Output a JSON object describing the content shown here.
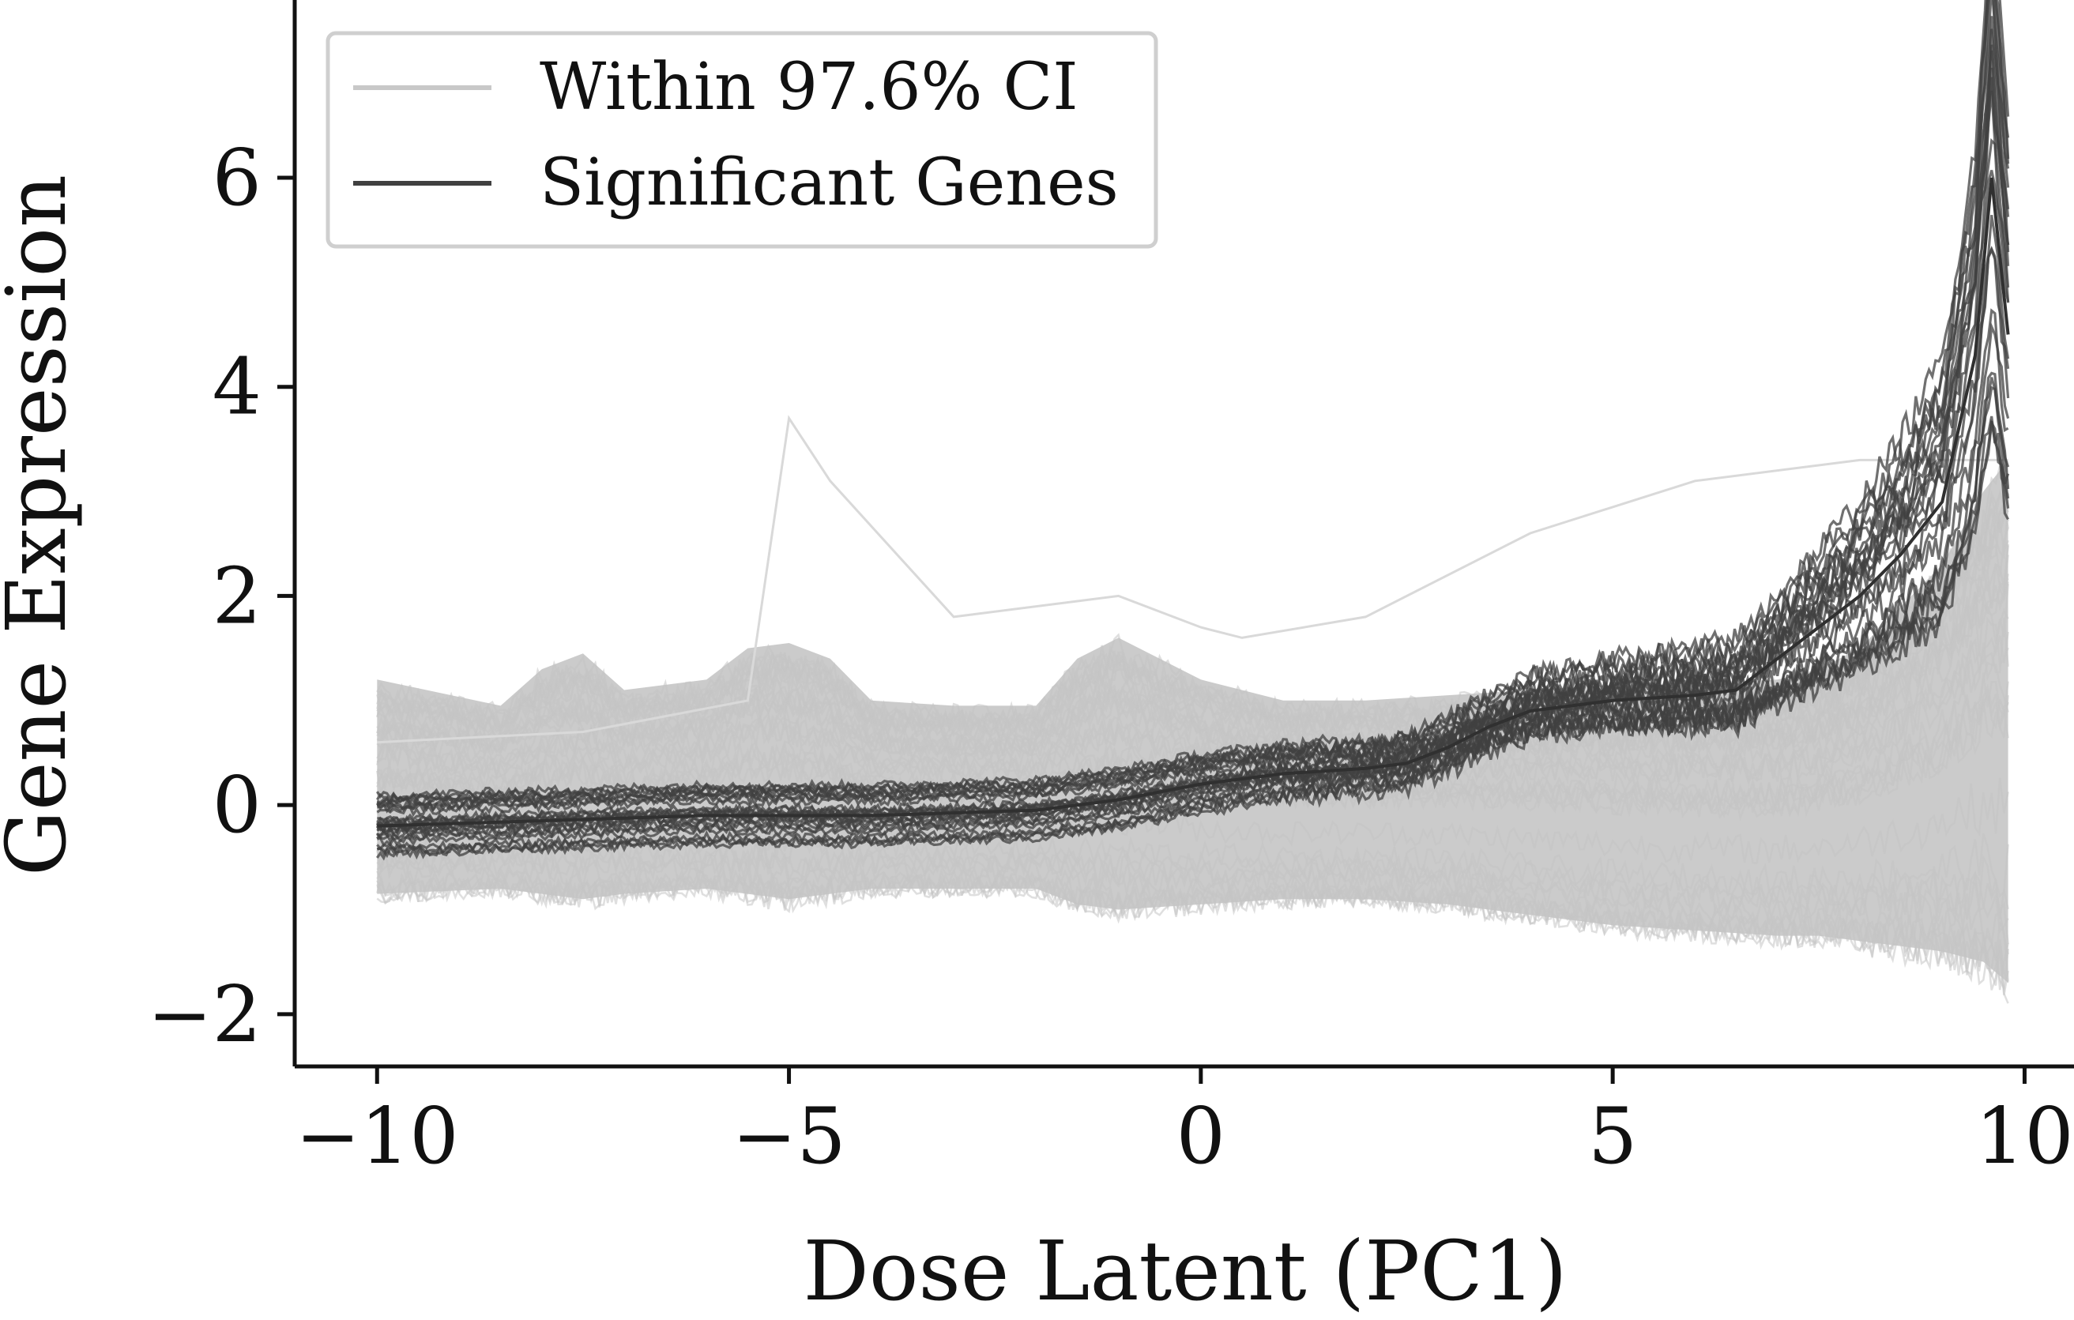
{
  "chart_data": {
    "type": "line",
    "title": "",
    "xlabel": "Dose Latent (PC1)",
    "ylabel": "Gene Expression",
    "xlim": [
      -11.0,
      10.6
    ],
    "ylim": [
      -2.5,
      7.7
    ],
    "x_ticks": [
      {
        "value": -10,
        "label": "−10"
      },
      {
        "value": -5,
        "label": "−5"
      },
      {
        "value": 0,
        "label": "0"
      },
      {
        "value": 5,
        "label": "5"
      },
      {
        "value": 10,
        "label": "10"
      }
    ],
    "y_ticks": [
      {
        "value": -2,
        "label": "−2"
      },
      {
        "value": 0,
        "label": "0"
      },
      {
        "value": 2,
        "label": "2"
      },
      {
        "value": 4,
        "label": "4"
      },
      {
        "value": 6,
        "label": "6"
      }
    ],
    "grid": false,
    "legend": {
      "placement": "top-left",
      "entries": [
        {
          "label": "Within 97.6% CI",
          "color": "#c8c8c8"
        },
        {
          "label": "Significant Genes",
          "color": "#404040"
        }
      ]
    },
    "x_range": [
      -10,
      9.8
    ],
    "ci_band": {
      "color": "#cbcbcb",
      "x": [
        -10,
        -8.5,
        -8,
        -7.5,
        -7,
        -6,
        -5.5,
        -5,
        -4.5,
        -4,
        -3,
        -2,
        -1.5,
        -1,
        0,
        1,
        2,
        3,
        4,
        5,
        6,
        7,
        7.5,
        8,
        8.5,
        9,
        9.5,
        9.8
      ],
      "upper": [
        1.2,
        0.95,
        1.3,
        1.45,
        1.1,
        1.2,
        1.5,
        1.55,
        1.4,
        1.0,
        0.95,
        0.95,
        1.4,
        1.6,
        1.2,
        1.0,
        1.0,
        1.05,
        1.1,
        1.15,
        1.15,
        1.2,
        1.3,
        1.5,
        1.9,
        2.3,
        3.0,
        3.3
      ],
      "lower": [
        -0.85,
        -0.8,
        -0.85,
        -0.9,
        -0.85,
        -0.8,
        -0.85,
        -0.9,
        -0.85,
        -0.8,
        -0.8,
        -0.8,
        -0.95,
        -1.0,
        -0.95,
        -0.9,
        -0.9,
        -0.95,
        -1.05,
        -1.15,
        -1.2,
        -1.25,
        -1.25,
        -1.3,
        -1.35,
        -1.4,
        -1.5,
        -1.7
      ]
    },
    "series": [
      {
        "name": "Within 97.6% CI",
        "color": "#c8c8c8",
        "x": [
          -10,
          -7.5,
          -5.5,
          -5,
          -4.5,
          -3,
          -1,
          0,
          0.5,
          2,
          4,
          6,
          8,
          9.8
        ],
        "y": [
          0.6,
          0.7,
          1.0,
          3.7,
          3.1,
          1.8,
          2.0,
          1.7,
          1.6,
          1.8,
          2.6,
          3.1,
          3.3,
          3.3
        ]
      },
      {
        "name": "Significant Genes",
        "color": "#404040",
        "x": [
          -10,
          -8,
          -6,
          -4,
          -2,
          -1,
          0,
          1,
          2,
          2.5,
          3,
          3.5,
          4,
          5,
          6,
          6.5,
          7,
          7.5,
          8,
          8.5,
          9,
          9.4,
          9.6,
          9.8
        ],
        "y": [
          -0.2,
          -0.15,
          -0.1,
          -0.1,
          -0.05,
          0.05,
          0.2,
          0.3,
          0.35,
          0.4,
          0.55,
          0.75,
          0.9,
          1.0,
          1.05,
          1.1,
          1.4,
          1.7,
          2.0,
          2.4,
          2.9,
          4.3,
          6.0,
          4.5
        ]
      }
    ]
  }
}
